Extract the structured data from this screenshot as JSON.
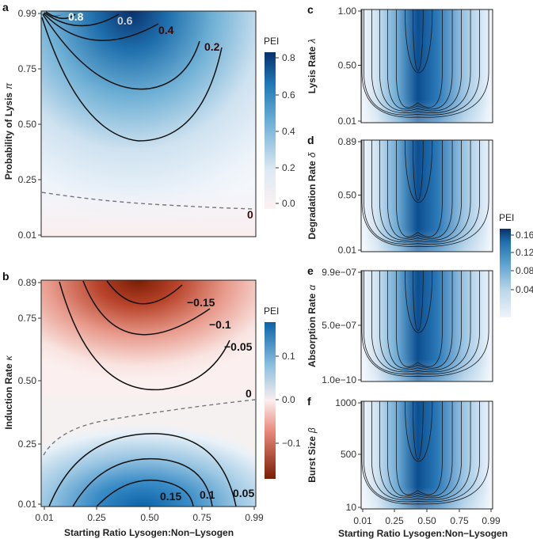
{
  "chart_data": [
    {
      "id": "a",
      "type": "heatmap",
      "panel_label": "a",
      "xlabel": "",
      "ylabel": "Probability of Lysis",
      "ylabel_symbol": "π",
      "x_ticks": [
        "0.01",
        "0.25",
        "0.50",
        "0.75",
        "0.99"
      ],
      "y_ticks": [
        "0.99",
        "0.75",
        "0.50",
        "0.25",
        "0.01"
      ],
      "xlim": [
        0.01,
        0.99
      ],
      "ylim": [
        0.01,
        0.99
      ],
      "legend_title": "PEI",
      "legend_ticks": [
        "0.8",
        "0.6",
        "0.4",
        "0.2",
        "0.0"
      ],
      "colorscale": [
        "#fdf1f1",
        "#dde9f3",
        "#6fb0d5",
        "#1f78b4",
        "#08306b"
      ],
      "contour_labels": [
        {
          "text": "0.8",
          "color": "#ffffff"
        },
        {
          "text": "0.6",
          "color": "#cfcfcf"
        },
        {
          "text": "0.4",
          "color": "#3a0808"
        },
        {
          "text": "0.2",
          "color": "#3a0808"
        },
        {
          "text": "0",
          "color": "#3a0808"
        }
      ]
    },
    {
      "id": "b",
      "type": "heatmap",
      "panel_label": "b",
      "xlabel": "Starting Ratio Lysogen:Non−Lysogen",
      "ylabel": "Induction Rate",
      "ylabel_symbol": "κ",
      "x_ticks": [
        "0.01",
        "0.25",
        "0.50",
        "0.75",
        "0.99"
      ],
      "y_ticks": [
        "0.89",
        "0.75",
        "0.50",
        "0.25",
        "0.01"
      ],
      "xlim": [
        0.01,
        0.99
      ],
      "ylim": [
        0.01,
        0.89
      ],
      "legend_title": "PEI",
      "legend_ticks": [
        "0.1",
        "0.0",
        "−0.1"
      ],
      "colorscale": [
        "#7a1e04",
        "#e7877a",
        "#fbeeee",
        "#8ec0e0",
        "#0b63a8"
      ],
      "contour_labels": [
        {
          "text": "−0.15",
          "color": "#111111"
        },
        {
          "text": "−0.1",
          "color": "#111111"
        },
        {
          "text": "−0.05",
          "color": "#111111"
        },
        {
          "text": "0",
          "color": "#111111"
        },
        {
          "text": "0.15",
          "color": "#111111"
        },
        {
          "text": "0.1",
          "color": "#111111"
        },
        {
          "text": "0.05",
          "color": "#111111"
        }
      ]
    },
    {
      "id": "c",
      "type": "heatmap",
      "panel_label": "c",
      "ylabel": "Lysis Rate",
      "ylabel_symbol": "λ",
      "y_ticks": [
        "1.00",
        "0.50",
        "0.01"
      ],
      "peak_x": 0.43
    },
    {
      "id": "d",
      "type": "heatmap",
      "panel_label": "d",
      "ylabel": "Degradation Rate",
      "ylabel_symbol": "δ",
      "y_ticks": [
        "0.89",
        "0.50",
        "0.01"
      ],
      "peak_x": 0.43
    },
    {
      "id": "e",
      "type": "heatmap",
      "panel_label": "e",
      "ylabel": "Absorption Rate",
      "ylabel_symbol": "α",
      "y_ticks": [
        "9.9e−07",
        "5.0e−07",
        "1.0e−10"
      ],
      "peak_x": 0.43
    },
    {
      "id": "f",
      "type": "heatmap",
      "panel_label": "f",
      "xlabel": "Starting Ratio Lysogen:Non−Lysogen",
      "ylabel": "Burst Size",
      "ylabel_symbol": "β",
      "x_ticks": [
        "0.01",
        "0.25",
        "0.50",
        "0.75",
        "0.99"
      ],
      "y_ticks": [
        "1000",
        "500",
        "10"
      ],
      "peak_x": 0.43
    },
    {
      "id": "cdef-legend",
      "type": "colorbar",
      "legend_title": "PEI",
      "legend_ticks": [
        "0.16",
        "0.12",
        "0.08",
        "0.04"
      ],
      "colorscale": [
        "#eef4fa",
        "#bcd7ea",
        "#5ea3d0",
        "#1f6fad",
        "#08306b"
      ]
    }
  ]
}
